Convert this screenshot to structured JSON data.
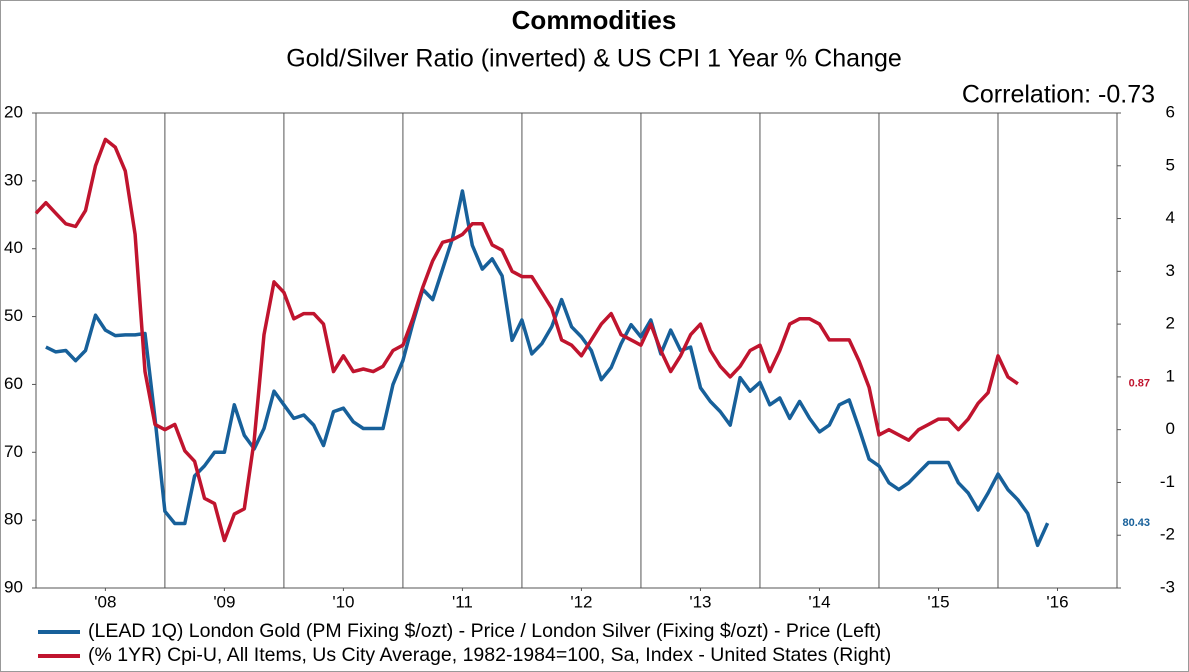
{
  "chart_data": {
    "type": "line",
    "title": "Commodities",
    "subtitle": "Gold/Silver Ratio (inverted) & US CPI 1 Year % Change",
    "annotation": "Correlation: -0.73",
    "x": [
      2007.917,
      2008,
      2008.083,
      2008.167,
      2008.25,
      2008.333,
      2008.417,
      2008.5,
      2008.583,
      2008.667,
      2008.75,
      2008.833,
      2008.917,
      2009,
      2009.083,
      2009.167,
      2009.25,
      2009.333,
      2009.417,
      2009.5,
      2009.583,
      2009.667,
      2009.75,
      2009.833,
      2009.917,
      2010,
      2010.083,
      2010.167,
      2010.25,
      2010.333,
      2010.417,
      2010.5,
      2010.583,
      2010.667,
      2010.75,
      2010.833,
      2010.917,
      2011,
      2011.083,
      2011.167,
      2011.25,
      2011.333,
      2011.417,
      2011.5,
      2011.583,
      2011.667,
      2011.75,
      2011.833,
      2011.917,
      2012,
      2012.083,
      2012.167,
      2012.25,
      2012.333,
      2012.417,
      2012.5,
      2012.583,
      2012.667,
      2012.75,
      2012.833,
      2012.917,
      2013,
      2013.083,
      2013.167,
      2013.25,
      2013.333,
      2013.417,
      2013.5,
      2013.583,
      2013.667,
      2013.75,
      2013.833,
      2013.917,
      2014,
      2014.083,
      2014.167,
      2014.25,
      2014.333,
      2014.417,
      2014.5,
      2014.583,
      2014.667,
      2014.75,
      2014.833,
      2014.917,
      2015,
      2015.083,
      2015.167,
      2015.25,
      2015.333,
      2015.417,
      2015.5,
      2015.583,
      2015.667,
      2015.75,
      2015.833,
      2015.917,
      2016,
      2016.083,
      2016.167,
      2016.25,
      2016.333,
      2016.417
    ],
    "series": [
      {
        "name": "(LEAD 1Q) London Gold (PM Fixing $/ozt) - Price / London Silver (Fixing $/ozt) - Price  (Left)",
        "color": "#17609a",
        "axis": "y",
        "values": [
          null,
          54.5,
          55.2,
          55,
          56.5,
          55,
          49.8,
          52,
          52.8,
          52.7,
          52.7,
          52.5,
          65,
          78.7,
          80.5,
          80.5,
          73.5,
          72,
          70,
          70,
          63,
          67.5,
          69.5,
          66.5,
          61,
          63,
          65,
          64.5,
          66,
          69,
          64,
          63.5,
          65.5,
          66.5,
          66.5,
          66.5,
          60,
          56.5,
          51,
          46,
          47.5,
          43,
          38.5,
          31.5,
          39.5,
          43,
          41.5,
          44,
          53.5,
          50.5,
          55.5,
          54,
          51.5,
          47.5,
          51.5,
          53,
          55,
          59.3,
          57.5,
          54,
          51.2,
          53,
          50.5,
          55.5,
          52,
          55,
          54.5,
          60.5,
          62.5,
          64,
          66,
          59,
          61,
          59.7,
          63,
          62,
          65,
          62.5,
          65,
          67,
          66,
          63,
          62.3,
          66.5,
          71,
          72,
          74.5,
          75.5,
          74.5,
          73,
          71.5,
          71.5,
          71.5,
          74.5,
          76,
          78.5,
          76,
          73.2,
          75.5,
          77,
          79,
          83.7,
          80.43
        ]
      },
      {
        "name": "(% 1YR) Cpi-U, All Items, Us City Average, 1982-1984=100, Sa, Index - United States  (Right)",
        "color": "#c0142e",
        "axis": "y2",
        "values": [
          4.1,
          4.3,
          4.1,
          3.9,
          3.85,
          4.15,
          5.0,
          5.5,
          5.35,
          4.9,
          3.7,
          1.1,
          0.1,
          0.0,
          0.1,
          -0.4,
          -0.6,
          -1.3,
          -1.4,
          -2.1,
          -1.6,
          -1.5,
          -0.2,
          1.8,
          2.8,
          2.6,
          2.1,
          2.2,
          2.2,
          2.0,
          1.1,
          1.4,
          1.1,
          1.15,
          1.1,
          1.2,
          1.5,
          1.6,
          2.1,
          2.7,
          3.2,
          3.55,
          3.6,
          3.7,
          3.9,
          3.9,
          3.5,
          3.4,
          3.0,
          2.9,
          2.9,
          2.6,
          2.3,
          1.7,
          1.6,
          1.4,
          1.7,
          2.0,
          2.2,
          1.8,
          1.7,
          1.6,
          2.0,
          1.5,
          1.1,
          1.4,
          1.8,
          2.0,
          1.5,
          1.2,
          1.0,
          1.2,
          1.5,
          1.6,
          1.1,
          1.5,
          2.0,
          2.1,
          2.1,
          2.0,
          1.7,
          1.7,
          1.7,
          1.3,
          0.8,
          -0.1,
          0.0,
          -0.1,
          -0.2,
          0.0,
          0.1,
          0.2,
          0.2,
          0.0,
          0.2,
          0.5,
          0.7,
          1.4,
          1.0,
          0.87,
          null,
          null,
          null
        ]
      }
    ],
    "xlim": [
      2007.917,
      2017
    ],
    "xticks": [
      {
        "value": 2008.5,
        "label": "'08"
      },
      {
        "value": 2009.5,
        "label": "'09"
      },
      {
        "value": 2010.5,
        "label": "'10"
      },
      {
        "value": 2011.5,
        "label": "'11"
      },
      {
        "value": 2012.5,
        "label": "'12"
      },
      {
        "value": 2013.5,
        "label": "'13"
      },
      {
        "value": 2014.5,
        "label": "'14"
      },
      {
        "value": 2015.5,
        "label": "'15"
      },
      {
        "value": 2016.5,
        "label": "'16"
      }
    ],
    "xgrid": [
      2009,
      2010,
      2011,
      2012,
      2013,
      2014,
      2015,
      2016
    ],
    "ylim": [
      20,
      90
    ],
    "y_inverted": true,
    "yticks": [
      20,
      30,
      40,
      50,
      60,
      70,
      80,
      90
    ],
    "y2lim": [
      -3,
      6
    ],
    "y2ticks": [
      -3,
      -2,
      -1,
      0,
      1,
      2,
      3,
      4,
      5,
      6
    ]
  }
}
